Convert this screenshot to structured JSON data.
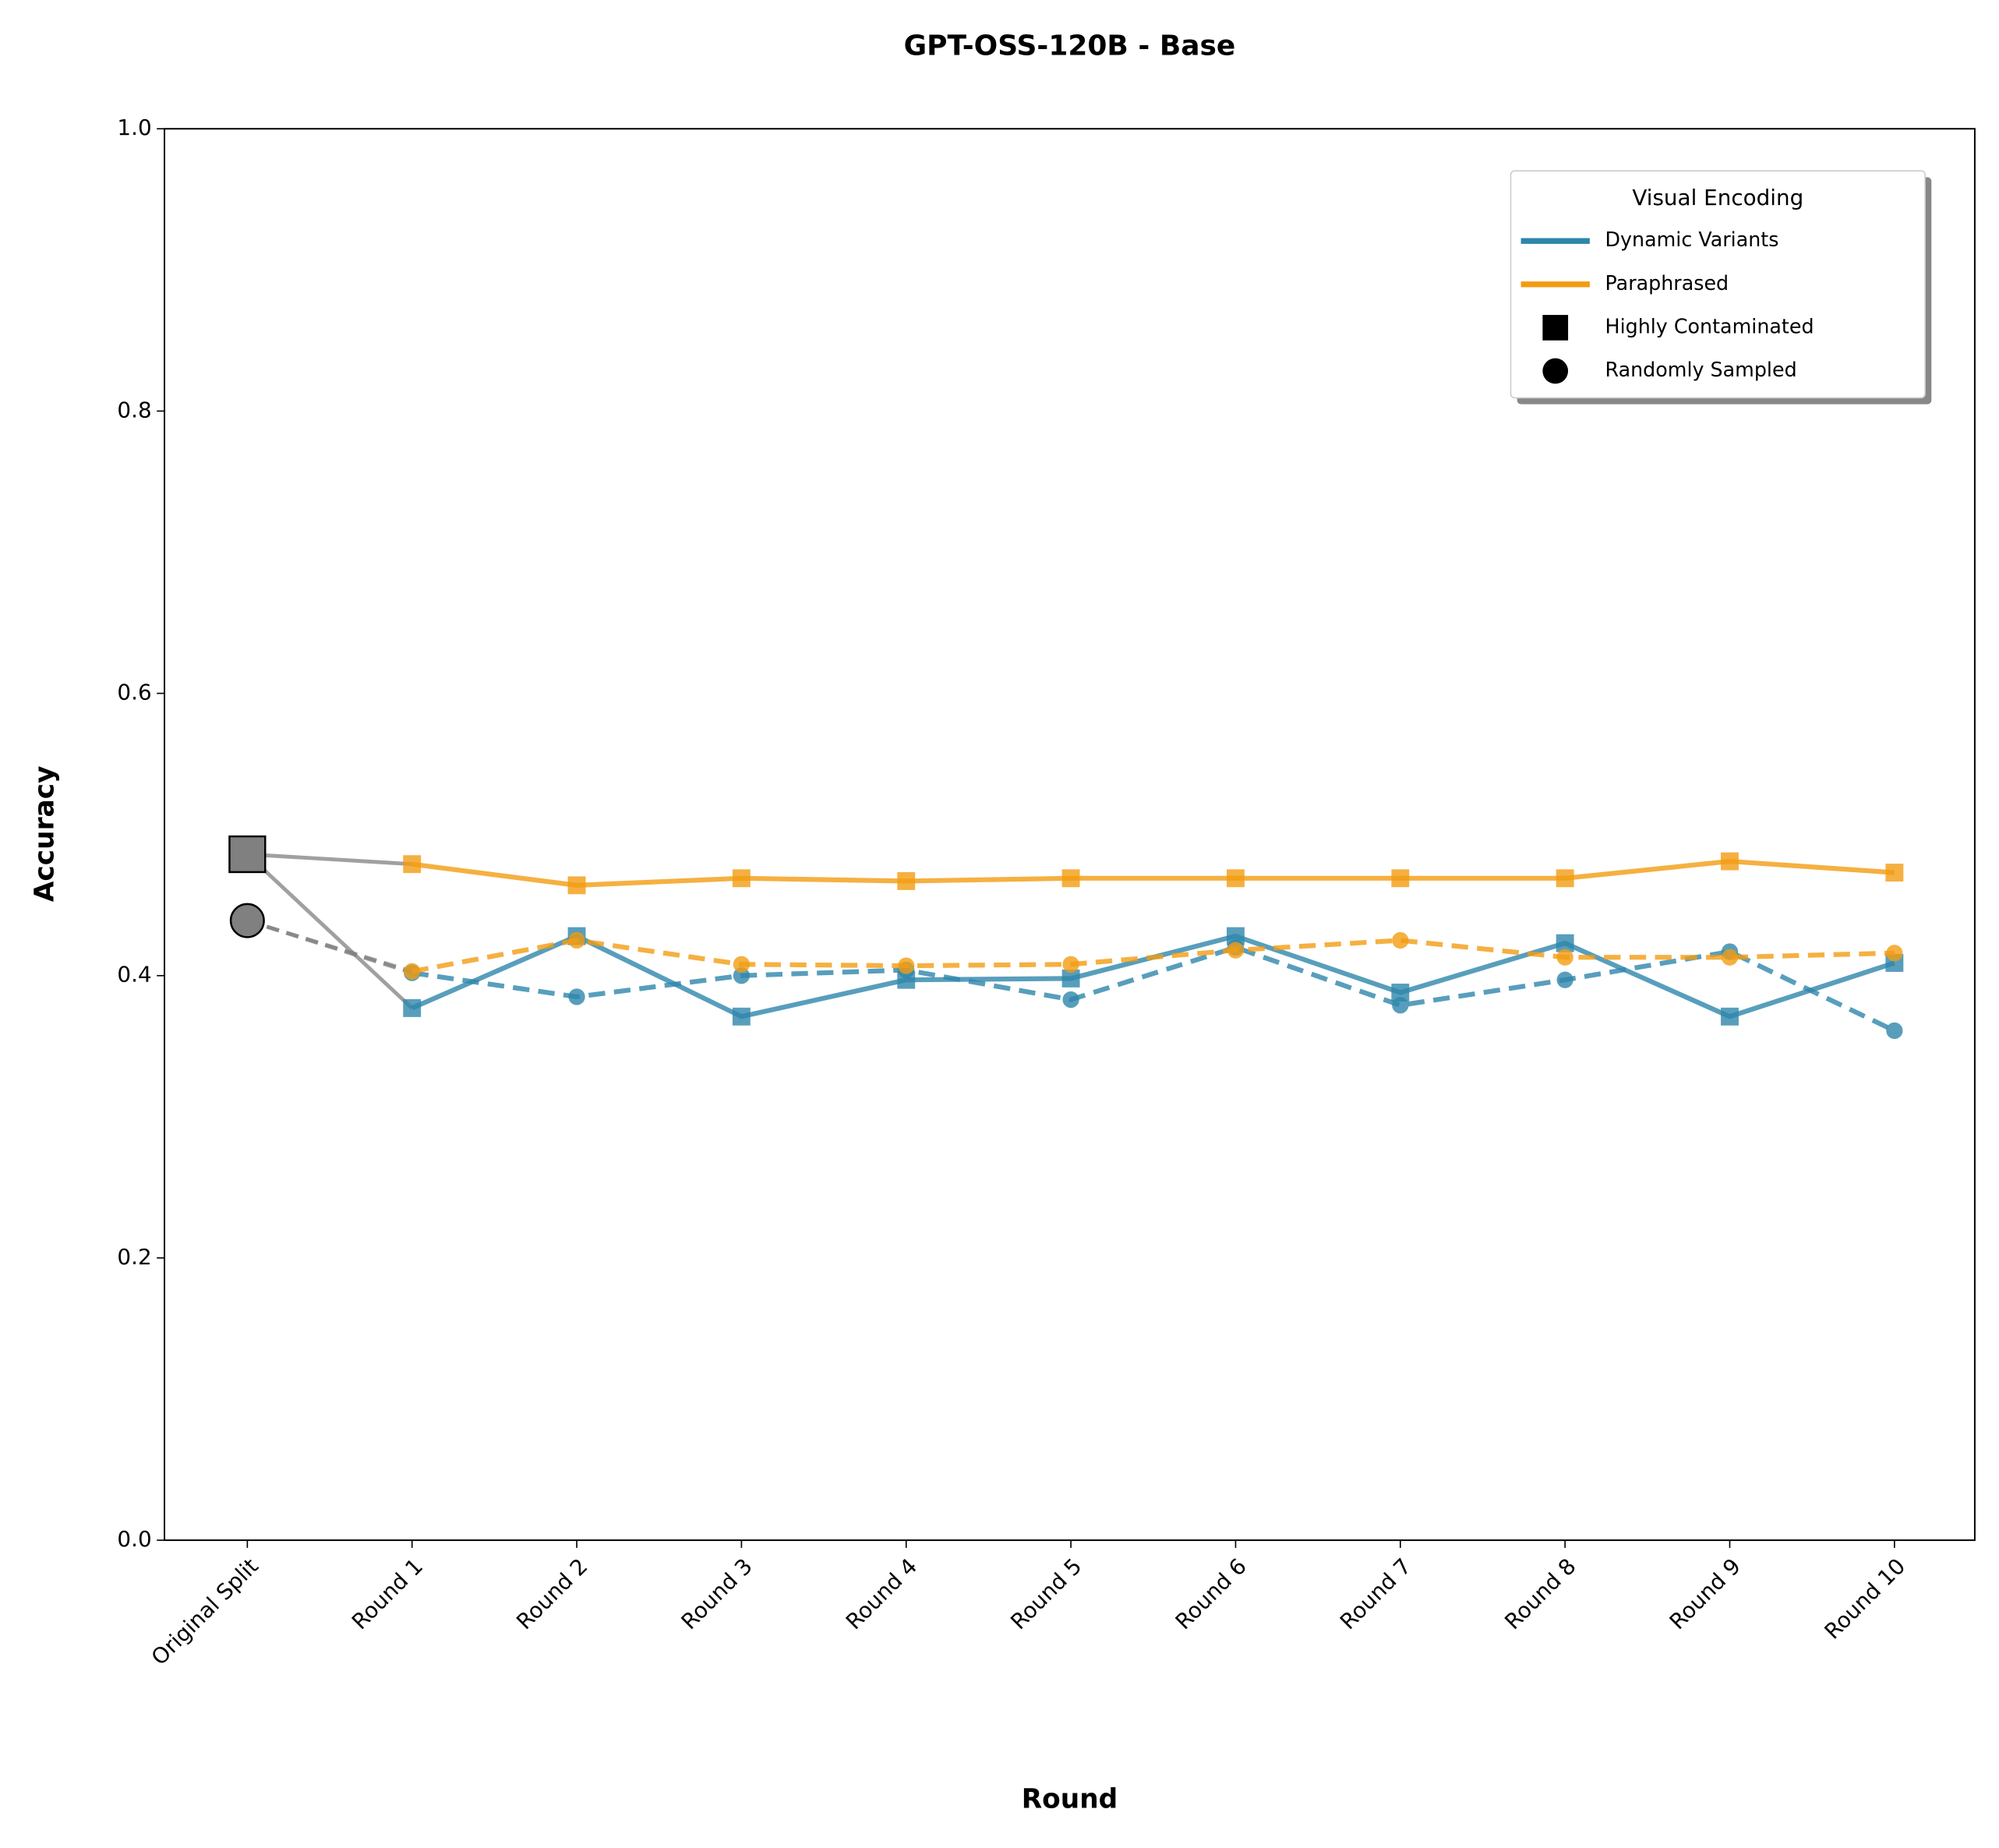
{
  "chart_data": {
    "type": "line",
    "title": "GPT-OSS-120B - Base",
    "xlabel": "Round",
    "ylabel": "Accuracy",
    "categories": [
      "Original Split",
      "Round 1",
      "Round 2",
      "Round 3",
      "Round 4",
      "Round 5",
      "Round 6",
      "Round 7",
      "Round 8",
      "Round 9",
      "Round 10"
    ],
    "ylim": [
      0,
      1
    ],
    "yticks": [
      {
        "value": 0,
        "label": "0.0"
      },
      0.2,
      0.4,
      0.6,
      0.8,
      {
        "value": 1,
        "label": "1.0"
      }
    ],
    "original": {
      "color": "#808080",
      "values": [
        0.486,
        0.439
      ]
    },
    "series": [
      {
        "name": "Dynamic Variants",
        "subset": "Highly Contaminated",
        "color": "#2e86ab",
        "linestyle": "solid",
        "marker": "square",
        "values": [
          null,
          0.377,
          0.428,
          0.371,
          0.397,
          0.398,
          0.428,
          0.388,
          0.423,
          0.371,
          0.409
        ]
      },
      {
        "name": "Dynamic Variants",
        "subset": "Randomly Sampled",
        "color": "#2e86ab",
        "linestyle": "dashed",
        "marker": "circle",
        "values": [
          null,
          0.402,
          0.385,
          0.4,
          0.404,
          0.383,
          0.42,
          0.379,
          0.397,
          0.417,
          0.361
        ]
      },
      {
        "name": "Paraphrased",
        "subset": "Highly Contaminated",
        "color": "#f39c12",
        "linestyle": "solid",
        "marker": "square",
        "values": [
          null,
          0.479,
          0.464,
          0.469,
          0.467,
          0.469,
          0.469,
          0.469,
          0.469,
          0.481,
          0.473
        ]
      },
      {
        "name": "Paraphrased",
        "subset": "Randomly Sampled",
        "color": "#f39c12",
        "linestyle": "dashed",
        "marker": "circle",
        "values": [
          null,
          0.403,
          0.425,
          0.408,
          0.407,
          0.408,
          0.418,
          0.425,
          0.413,
          0.413,
          0.416
        ]
      }
    ],
    "legend": {
      "title": "Visual Encoding",
      "position": "upper right"
    }
  }
}
